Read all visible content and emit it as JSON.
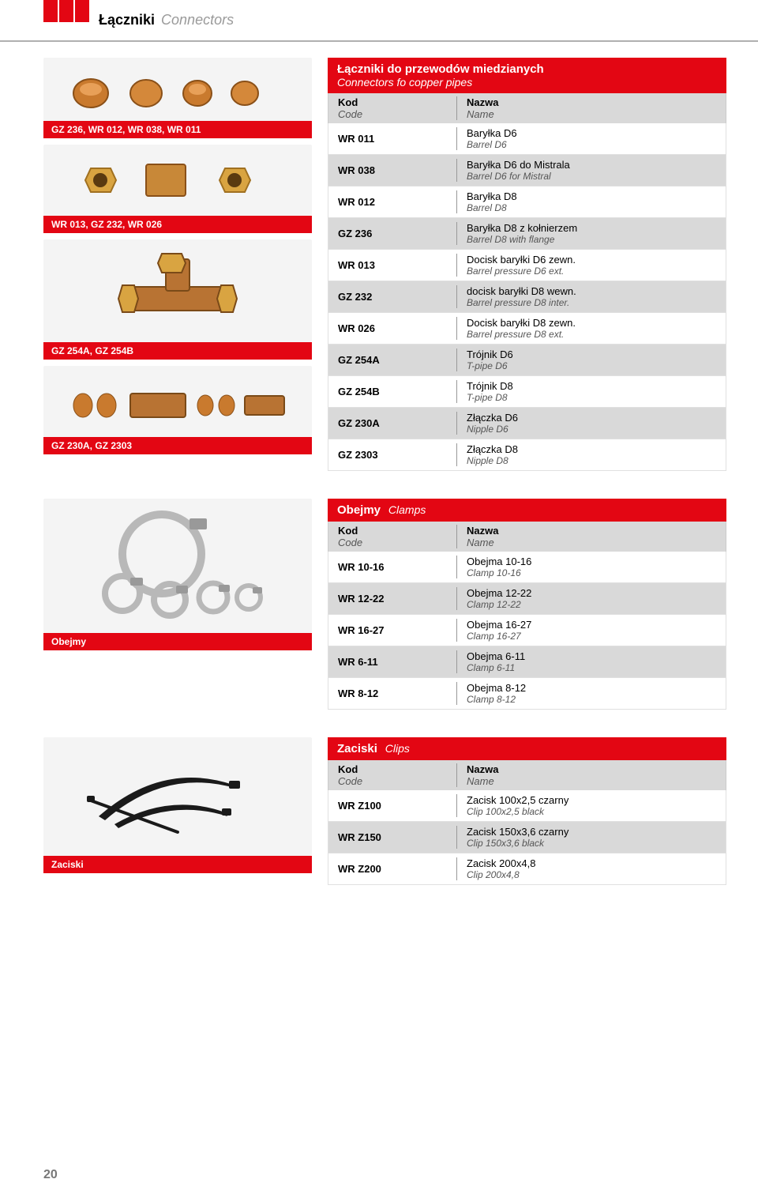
{
  "header": {
    "title": "Łączniki",
    "subtitle": "Connectors"
  },
  "page_number": "20",
  "colors": {
    "accent": "#e30613",
    "row_alt": "#d9d9d9",
    "subtitle": "#9a9a9a",
    "border": "#b0b0b0"
  },
  "captions": {
    "c1": "GZ 236, WR 012, WR 038, WR 011",
    "c2": "WR 013, GZ 232, WR 026",
    "c3": "GZ 254A, GZ 254B",
    "c4": "GZ 230A, GZ 2303",
    "c5": "Obejmy",
    "c6": "Zaciski"
  },
  "tables": {
    "connectors": {
      "title": "Łączniki do przewodów miedzianych",
      "title_en": "Connectors fo copper pipes",
      "head_code": "Kod",
      "head_code_en": "Code",
      "head_name": "Nazwa",
      "head_name_en": "Name",
      "rows": [
        {
          "code": "WR 011",
          "pl": "Baryłka D6",
          "en": "Barrel D6"
        },
        {
          "code": "WR 038",
          "pl": "Baryłka D6 do Mistrala",
          "en": "Barrel D6 for Mistral"
        },
        {
          "code": "WR 012",
          "pl": "Baryłka D8",
          "en": "Barrel D8"
        },
        {
          "code": "GZ 236",
          "pl": "Baryłka D8 z kołnierzem",
          "en": "Barrel D8 with flange"
        },
        {
          "code": "WR 013",
          "pl": "Docisk baryłki D6 zewn.",
          "en": "Barrel pressure D6 ext."
        },
        {
          "code": "GZ 232",
          "pl": "docisk baryłki D8 wewn.",
          "en": "Barrel pressure D8 inter."
        },
        {
          "code": "WR 026",
          "pl": "Docisk baryłki D8 zewn.",
          "en": "Barrel pressure D8 ext."
        },
        {
          "code": "GZ 254A",
          "pl": "Trójnik D6",
          "en": "T-pipe D6"
        },
        {
          "code": "GZ 254B",
          "pl": "Trójnik D8",
          "en": "T-pipe D8"
        },
        {
          "code": "GZ 230A",
          "pl": "Złączka D6",
          "en": "Nipple D6"
        },
        {
          "code": "GZ 2303",
          "pl": "Złączka D8",
          "en": "Nipple D8"
        }
      ]
    },
    "clamps": {
      "title": "Obejmy",
      "title_en": "Clamps",
      "head_code": "Kod",
      "head_code_en": "Code",
      "head_name": "Nazwa",
      "head_name_en": "Name",
      "rows": [
        {
          "code": "WR 10-16",
          "pl": "Obejma 10-16",
          "en": "Clamp 10-16"
        },
        {
          "code": "WR 12-22",
          "pl": "Obejma 12-22",
          "en": "Clamp 12-22"
        },
        {
          "code": "WR 16-27",
          "pl": "Obejma 16-27",
          "en": "Clamp 16-27"
        },
        {
          "code": "WR 6-11",
          "pl": "Obejma 6-11",
          "en": "Clamp 6-11"
        },
        {
          "code": "WR 8-12",
          "pl": "Obejma 8-12",
          "en": "Clamp 8-12"
        }
      ]
    },
    "clips": {
      "title": "Zaciski",
      "title_en": "Clips",
      "head_code": "Kod",
      "head_code_en": "Code",
      "head_name": "Nazwa",
      "head_name_en": "Name",
      "rows": [
        {
          "code": "WR Z100",
          "pl": "Zacisk 100x2,5 czarny",
          "en": "Clip 100x2,5 black"
        },
        {
          "code": "WR Z150",
          "pl": "Zacisk 150x3,6 czarny",
          "en": "Clip 150x3,6 black"
        },
        {
          "code": "WR  Z200",
          "pl": "Zacisk 200x4,8",
          "en": "Clip 200x4,8"
        }
      ]
    }
  }
}
